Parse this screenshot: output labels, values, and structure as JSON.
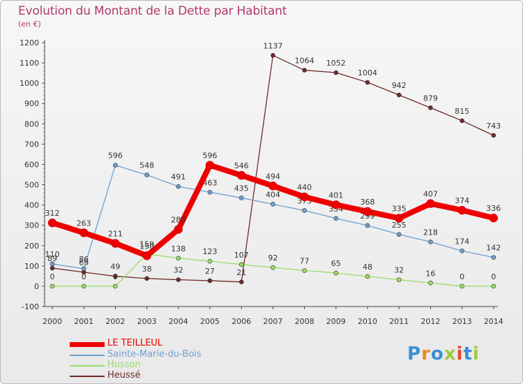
{
  "title": "Evolution du Montant de la Dette par Habitant",
  "unit": "(en €)",
  "logo": "Proxiti",
  "chart_data": {
    "type": "line",
    "categories": [
      "2000",
      "2001",
      "2002",
      "2003",
      "2004",
      "2005",
      "2006",
      "2007",
      "2008",
      "2009",
      "2010",
      "2011",
      "2012",
      "2013",
      "2014"
    ],
    "ylim": [
      -100,
      1200
    ],
    "yticks": [
      -100,
      0,
      100,
      200,
      300,
      400,
      500,
      600,
      700,
      800,
      900,
      1000,
      1100,
      1200
    ],
    "grid": false,
    "legend_position": "bottom-left",
    "series": [
      {
        "name": "LE TEILLEUL",
        "color": "#ee0000",
        "values": [
          312,
          263,
          211,
          150,
          280,
          596,
          546,
          494,
          440,
          401,
          368,
          335,
          407,
          374,
          336
        ]
      },
      {
        "name": "Sainte-Marie-du-Bois",
        "color": "#6f9fd1",
        "values": [
          110,
          86,
          596,
          548,
          491,
          463,
          435,
          404,
          373,
          334,
          299,
          255,
          218,
          174,
          142
        ]
      },
      {
        "name": "Husson",
        "color": "#99dd66",
        "values": [
          0,
          0,
          0,
          159,
          138,
          123,
          107,
          92,
          77,
          65,
          48,
          32,
          16,
          0,
          0
        ]
      },
      {
        "name": "Heussé",
        "color": "#6f2a2a",
        "values": [
          89,
          69,
          49,
          38,
          32,
          27,
          21,
          1137,
          1064,
          1052,
          1004,
          942,
          879,
          815,
          743
        ]
      }
    ]
  }
}
